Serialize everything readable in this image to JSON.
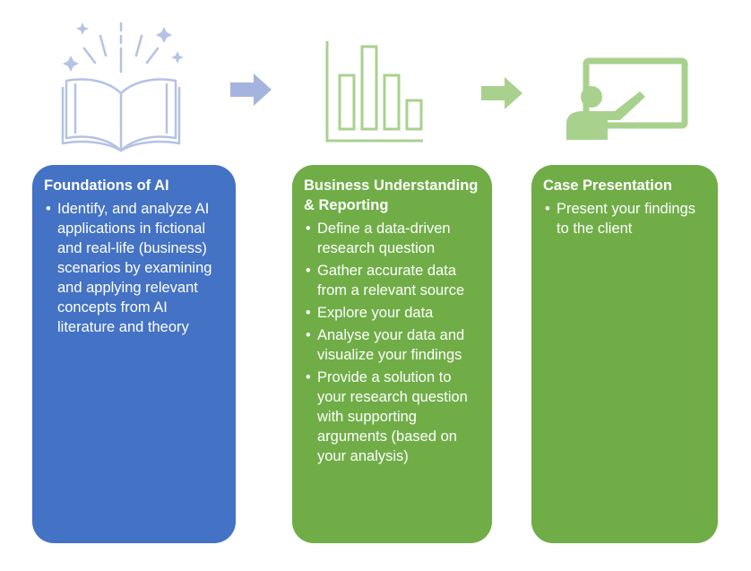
{
  "columns": [
    {
      "title": "Foundations of AI",
      "color": "#4472c4",
      "icon": "open-book-icon",
      "items": [
        " Identify, and analyze AI applications in fictional and real-life (business) scenarios by examining and applying relevant concepts from AI literature and theory"
      ]
    },
    {
      "title": "Business Understanding & Reporting",
      "color": "#70ad47",
      "icon": "bar-chart-icon",
      "items": [
        "Define a data-driven research question",
        "Gather accurate data from a relevant source",
        "Explore your data",
        "Analyse your data and visualize your findings",
        "Provide a solution to your research question with supporting arguments (based on your analysis)"
      ]
    },
    {
      "title": "Case Presentation",
      "color": "#70ad47",
      "icon": "presenter-board-icon",
      "items": [
        "Present your findings to the client"
      ]
    }
  ],
  "arrows": {
    "first_color": "#a5b4de",
    "second_color": "#a9d18e"
  }
}
